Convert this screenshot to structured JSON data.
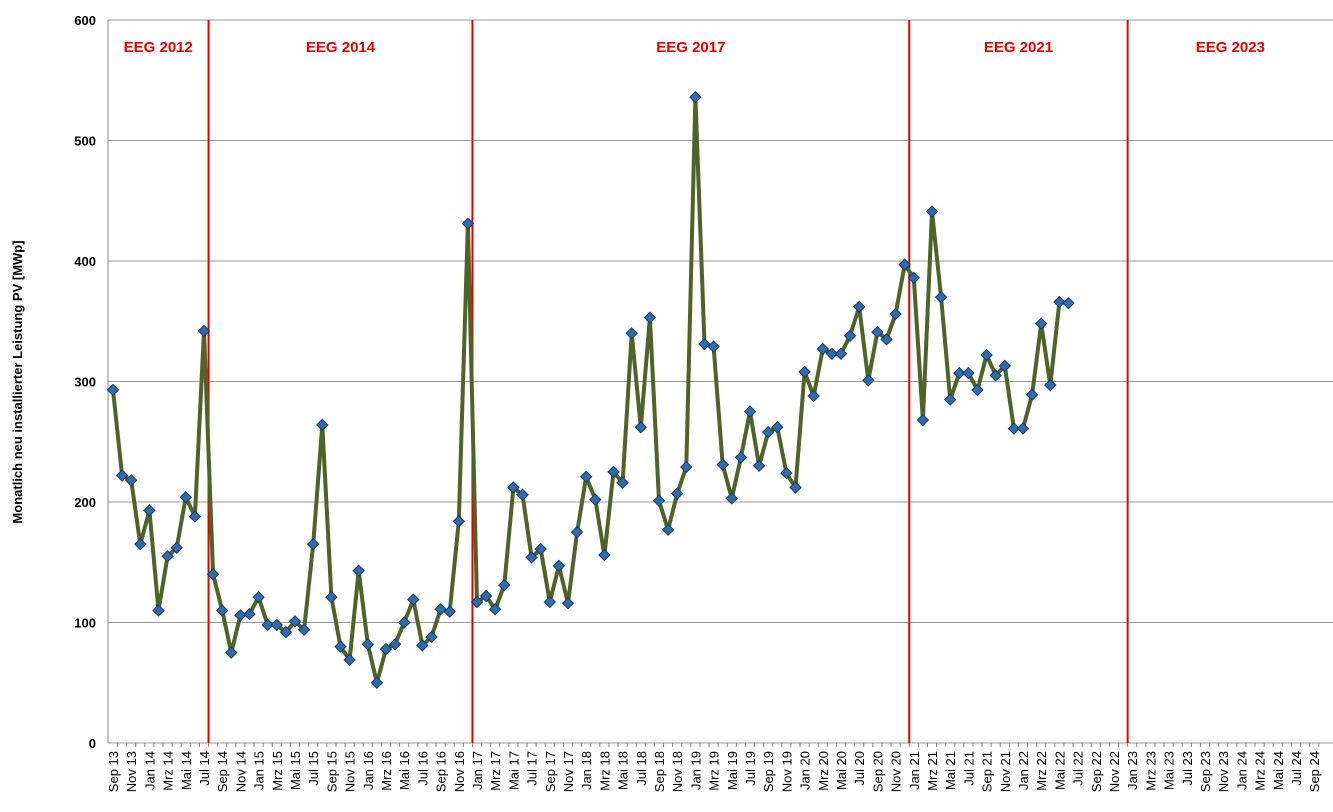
{
  "chart_data": {
    "type": "line",
    "y_label": "Monatlich neu installierter Leistung PV [MWp]",
    "periods": [
      "EEG 2012",
      "EEG 2014",
      "EEG 2017",
      "EEG 2021",
      "EEG 2023"
    ],
    "categories": [
      "Sep 13",
      null,
      "Nov 13",
      null,
      "Jan 14",
      null,
      "Mrz 14",
      null,
      "Mai 14",
      null,
      "Jul 14",
      null,
      "Sep 14",
      null,
      "Nov 14",
      null,
      "Jan 15",
      null,
      "Mrz 15",
      null,
      "Mai 15",
      null,
      "Jul 15",
      null,
      "Sep 15",
      null,
      "Nov 15",
      null,
      "Jan 16",
      null,
      "Mrz 16",
      null,
      "Mai 16",
      null,
      "Jul 16",
      null,
      "Sep 16",
      null,
      "Nov 16",
      null,
      "Jan 17",
      null,
      "Mrz 17",
      null,
      "Mai 17",
      null,
      "Jul 17",
      null,
      "Sep 17",
      null,
      "Nov 17",
      null,
      "Jan 18",
      null,
      "Mrz 18",
      null,
      "Mai 18",
      null,
      "Jul 18",
      null,
      "Sep 18",
      null,
      "Nov 18",
      null,
      "Jan 19",
      null,
      "Mrz 19",
      null,
      "Mai 19",
      null,
      "Jul 19",
      null,
      "Sep 19",
      null,
      "Nov 19",
      null,
      "Jan 20",
      null,
      "Mrz 20",
      null,
      "Mai 20",
      null,
      "Jul 20",
      null,
      "Sep 20",
      null,
      "Nov 20",
      null,
      "Jan 21",
      null,
      "Mrz 21",
      null,
      "Mai 21",
      null,
      "Jul 21",
      null,
      "Sep 21",
      null,
      "Nov 21",
      null,
      "Jan 22",
      null,
      "Mrz 22",
      null,
      "Mai 22",
      null,
      "Jul 22",
      null,
      "Sep 22",
      null,
      "Nov 22",
      null,
      "Jan 23",
      null,
      "Mrz 23",
      null,
      "Mai 23",
      null,
      "Jul 23",
      null,
      "Sep 23",
      null,
      "Nov 23",
      null,
      "Jan 24",
      null,
      "Mrz 24",
      null,
      "Mai 24",
      null,
      "Jul 24",
      null,
      "Sep 24"
    ],
    "values": [
      293,
      222,
      218,
      165,
      193,
      110,
      155,
      162,
      204,
      188,
      342,
      140,
      110,
      75,
      106,
      107,
      121,
      98,
      98,
      92,
      101,
      94,
      165,
      264,
      121,
      80,
      69,
      143,
      82,
      50,
      78,
      82,
      100,
      119,
      81,
      88,
      111,
      109,
      184,
      431,
      117,
      122,
      111,
      131,
      212,
      206,
      154,
      161,
      117,
      147,
      116,
      175,
      221,
      202,
      156,
      225,
      216,
      340,
      262,
      353,
      201,
      177,
      207,
      229,
      536,
      331,
      329,
      231,
      203,
      237,
      275,
      230,
      258,
      262,
      224,
      212,
      308,
      288,
      327,
      323,
      323,
      338,
      362,
      301,
      341,
      335,
      356,
      397,
      386,
      268,
      441,
      370,
      285,
      307,
      307,
      293,
      322,
      305,
      313,
      261,
      261,
      289,
      348,
      297,
      366,
      365,
      null,
      null,
      null,
      null,
      null,
      null,
      null,
      null,
      null,
      null,
      null,
      null,
      null,
      null,
      null,
      null,
      null,
      null,
      null,
      null,
      null,
      null,
      null,
      null,
      null,
      null,
      null
    ],
    "color": "#4f6228",
    "marker_color": "#2e6bb0",
    "period_line_color": "#e00000",
    "ylim": [
      0,
      600
    ],
    "yticks": [
      0,
      100,
      200,
      300,
      400,
      500,
      600
    ],
    "grid": true
  }
}
